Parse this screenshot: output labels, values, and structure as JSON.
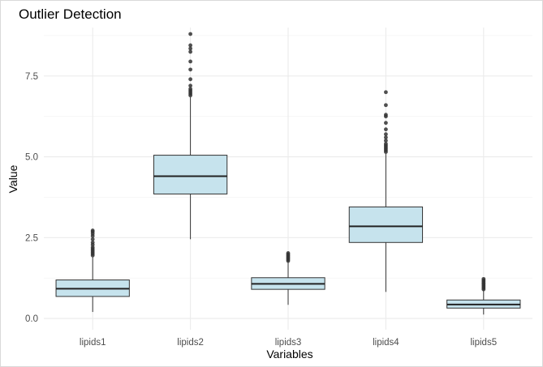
{
  "chart_data": {
    "type": "box",
    "title": "Outlier Detection",
    "xlabel": "Variables",
    "ylabel": "Value",
    "ylim": [
      -0.35,
      9.0
    ],
    "yticks": [
      0.0,
      2.5,
      5.0,
      7.5
    ],
    "ytick_labels": [
      "0.0",
      "2.5",
      "5.0",
      "7.5"
    ],
    "grid": true,
    "categories": [
      "lipids1",
      "lipids2",
      "lipids3",
      "lipids4",
      "lipids5"
    ],
    "fill_color": "#c6e3ed",
    "line_color": "#333333",
    "series": [
      {
        "category": "lipids1",
        "whisker_low": 0.2,
        "q1": 0.68,
        "median": 0.92,
        "q3": 1.19,
        "whisker_high": 1.9,
        "outliers": [
          1.95,
          2.0,
          2.05,
          2.1,
          2.15,
          2.2,
          2.28,
          2.35,
          2.45,
          2.55,
          2.62,
          2.68,
          2.72
        ]
      },
      {
        "category": "lipids2",
        "whisker_low": 2.45,
        "q1": 3.85,
        "median": 4.4,
        "q3": 5.05,
        "whisker_high": 6.85,
        "outliers": [
          6.9,
          6.95,
          7.0,
          7.05,
          7.1,
          7.2,
          7.4,
          7.7,
          7.95,
          8.25,
          8.35,
          8.45,
          8.8
        ]
      },
      {
        "category": "lipids3",
        "whisker_low": 0.42,
        "q1": 0.9,
        "median": 1.07,
        "q3": 1.26,
        "whisker_high": 1.75,
        "outliers": [
          1.78,
          1.82,
          1.86,
          1.9,
          1.94,
          1.98,
          2.02
        ]
      },
      {
        "category": "lipids4",
        "whisker_low": 0.82,
        "q1": 2.35,
        "median": 2.85,
        "q3": 3.45,
        "whisker_high": 5.1,
        "outliers": [
          5.15,
          5.2,
          5.25,
          5.3,
          5.35,
          5.4,
          5.5,
          5.6,
          5.7,
          5.85,
          6.05,
          6.25,
          6.3,
          6.6,
          7.0
        ]
      },
      {
        "category": "lipids5",
        "whisker_low": 0.12,
        "q1": 0.32,
        "median": 0.43,
        "q3": 0.57,
        "whisker_high": 0.88,
        "outliers": [
          0.9,
          0.94,
          0.98,
          1.02,
          1.06,
          1.1,
          1.14,
          1.18,
          1.22
        ]
      }
    ]
  }
}
